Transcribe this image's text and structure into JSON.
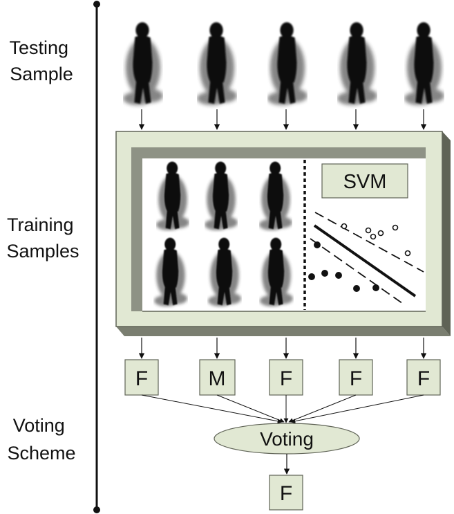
{
  "labels": {
    "testing": [
      "Testing",
      "Sample"
    ],
    "training": [
      "Training",
      "Samples"
    ],
    "voting": [
      "Voting",
      "Scheme"
    ]
  },
  "svm_label": "SVM",
  "predictions": [
    "F",
    "M",
    "F",
    "F",
    "F"
  ],
  "voting_label": "Voting",
  "final_result": "F",
  "colors": {
    "box_fill": "#e1e8d3",
    "box_border": "#5f6356",
    "frame_shadow": "#8e9285",
    "silhouette": "#111111"
  },
  "icons": {
    "testing_samples": [
      "gait-silhouette-icon",
      "gait-silhouette-icon",
      "gait-silhouette-icon",
      "gait-silhouette-icon",
      "gait-silhouette-icon"
    ],
    "training_samples": [
      "gait-silhouette-icon",
      "gait-silhouette-icon",
      "gait-silhouette-icon",
      "gait-silhouette-icon",
      "gait-silhouette-icon",
      "gait-silhouette-icon"
    ],
    "svm_plot": "svm-hyperplane-icon"
  }
}
